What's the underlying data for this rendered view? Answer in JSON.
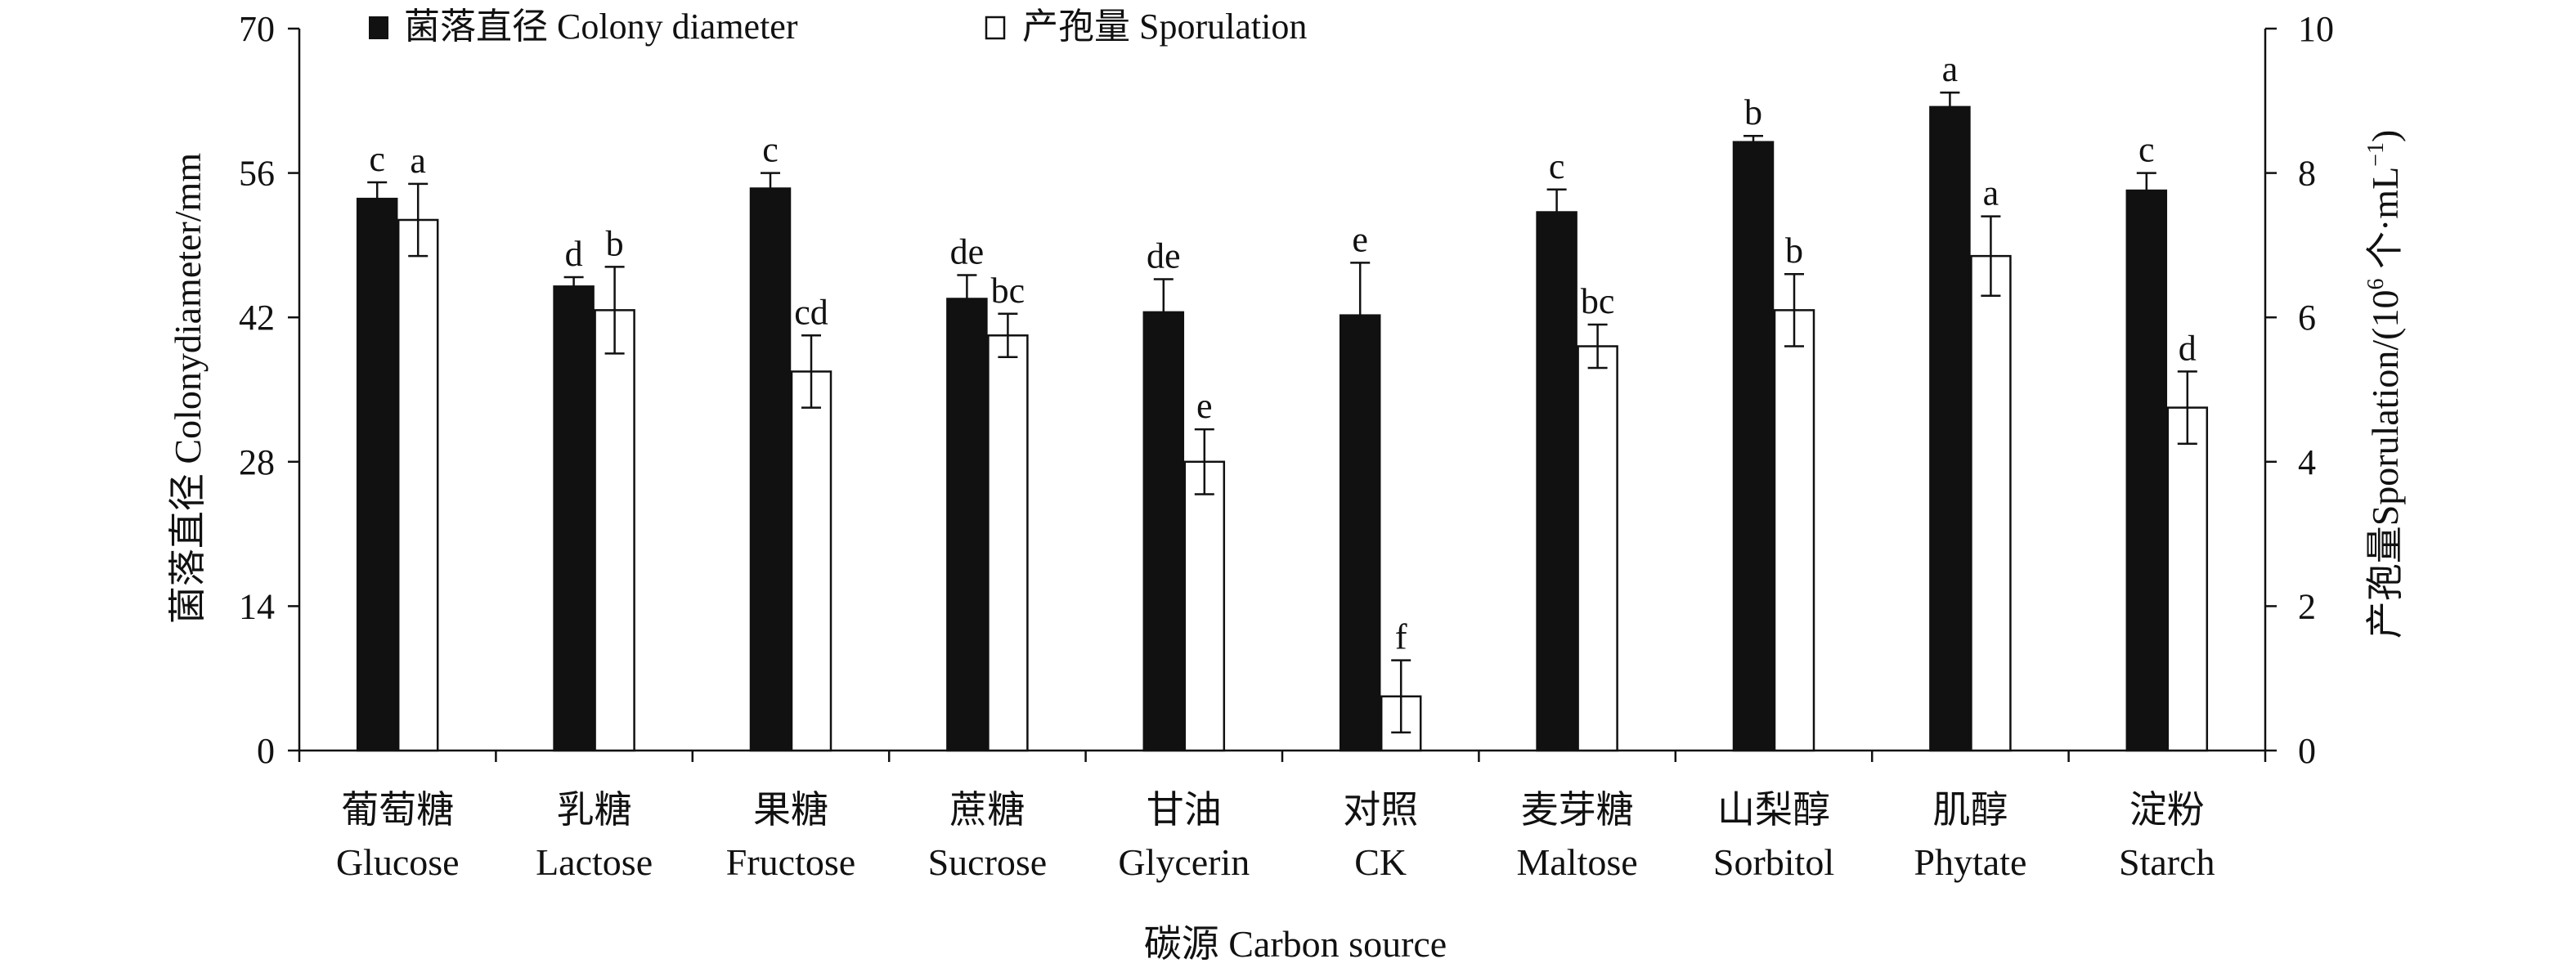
{
  "chart_data": {
    "type": "bar",
    "xlabel": "碳源 Carbon source",
    "ylabel_left": "菌落直径 Colonydiameter/mm",
    "ylabel_right_main": "产孢量Sporulation/(10",
    "ylabel_right_sup1": "6",
    "ylabel_right_mid": " 个·mL",
    "ylabel_right_sup2": "−1",
    "ylabel_right_end": ")",
    "ylim_left": [
      0,
      70
    ],
    "yticks_left": [
      0,
      14,
      28,
      42,
      56,
      70
    ],
    "ylim_right": [
      0,
      10
    ],
    "yticks_right": [
      0,
      2,
      4,
      6,
      8,
      10
    ],
    "legend_placement": "top-left",
    "grid": false,
    "categories": [
      {
        "zh": "葡萄糖",
        "en": "Glucose"
      },
      {
        "zh": "乳糖",
        "en": "Lactose"
      },
      {
        "zh": "果糖",
        "en": "Fructose"
      },
      {
        "zh": "蔗糖",
        "en": "Sucrose"
      },
      {
        "zh": "甘油",
        "en": "Glycerin"
      },
      {
        "zh": "对照",
        "en": "CK"
      },
      {
        "zh": "麦芽糖",
        "en": "Maltose"
      },
      {
        "zh": "山梨醇",
        "en": "Sorbitol"
      },
      {
        "zh": "肌醇",
        "en": "Phytate"
      },
      {
        "zh": "淀粉",
        "en": "Starch"
      }
    ],
    "series": [
      {
        "name": "菌落直径 Colony diameter",
        "axis": "left",
        "color": "#111111",
        "values": [
          53.5,
          45.0,
          54.5,
          43.8,
          42.5,
          42.2,
          52.2,
          59.0,
          62.4,
          54.3
        ],
        "errors": [
          1.6,
          0.9,
          1.5,
          2.3,
          3.2,
          5.1,
          2.2,
          0.6,
          1.4,
          1.7
        ],
        "labels": [
          "c",
          "d",
          "c",
          "de",
          "de",
          "e",
          "c",
          "b",
          "a",
          "c"
        ]
      },
      {
        "name": "产孢量 Sporulation",
        "axis": "right",
        "color": "#ffffff",
        "values": [
          7.35,
          6.1,
          5.25,
          5.75,
          4.0,
          0.75,
          5.6,
          6.1,
          6.85,
          4.75
        ],
        "errors": [
          0.5,
          0.6,
          0.5,
          0.3,
          0.45,
          0.5,
          0.3,
          0.5,
          0.55,
          0.5
        ],
        "labels": [
          "a",
          "b",
          "cd",
          "bc",
          "e",
          "f",
          "bc",
          "b",
          "a",
          "d"
        ]
      }
    ]
  }
}
